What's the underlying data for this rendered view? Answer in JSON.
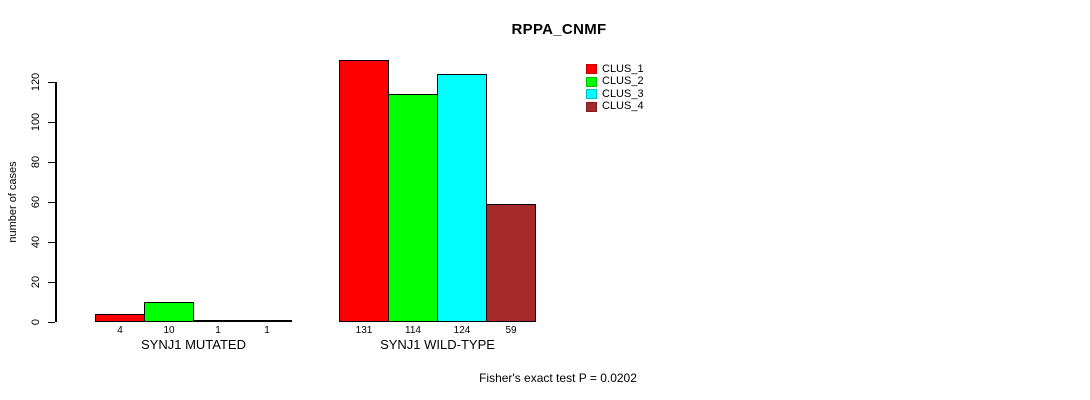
{
  "chart_data": {
    "type": "bar",
    "title": "RPPA_CNMF",
    "xlabel": "",
    "ylabel": "number of cases",
    "categories": [
      "SYNJ1 MUTATED",
      "SYNJ1 WILD-TYPE"
    ],
    "series": [
      {
        "name": "CLUS_1",
        "color": "#ff0000",
        "values": [
          4,
          131
        ]
      },
      {
        "name": "CLUS_2",
        "color": "#00ff00",
        "values": [
          10,
          114
        ]
      },
      {
        "name": "CLUS_3",
        "color": "#00ffff",
        "values": [
          1,
          124
        ]
      },
      {
        "name": "CLUS_4",
        "color": "#a52a2a",
        "values": [
          1,
          59
        ]
      }
    ],
    "yticks": [
      0,
      20,
      40,
      60,
      80,
      100,
      120
    ],
    "ylim": [
      0,
      131
    ],
    "grid": false,
    "legend_position": "top-right",
    "value_labels_shown": true,
    "annotation": "Fisher's exact test P = 0.0202"
  }
}
